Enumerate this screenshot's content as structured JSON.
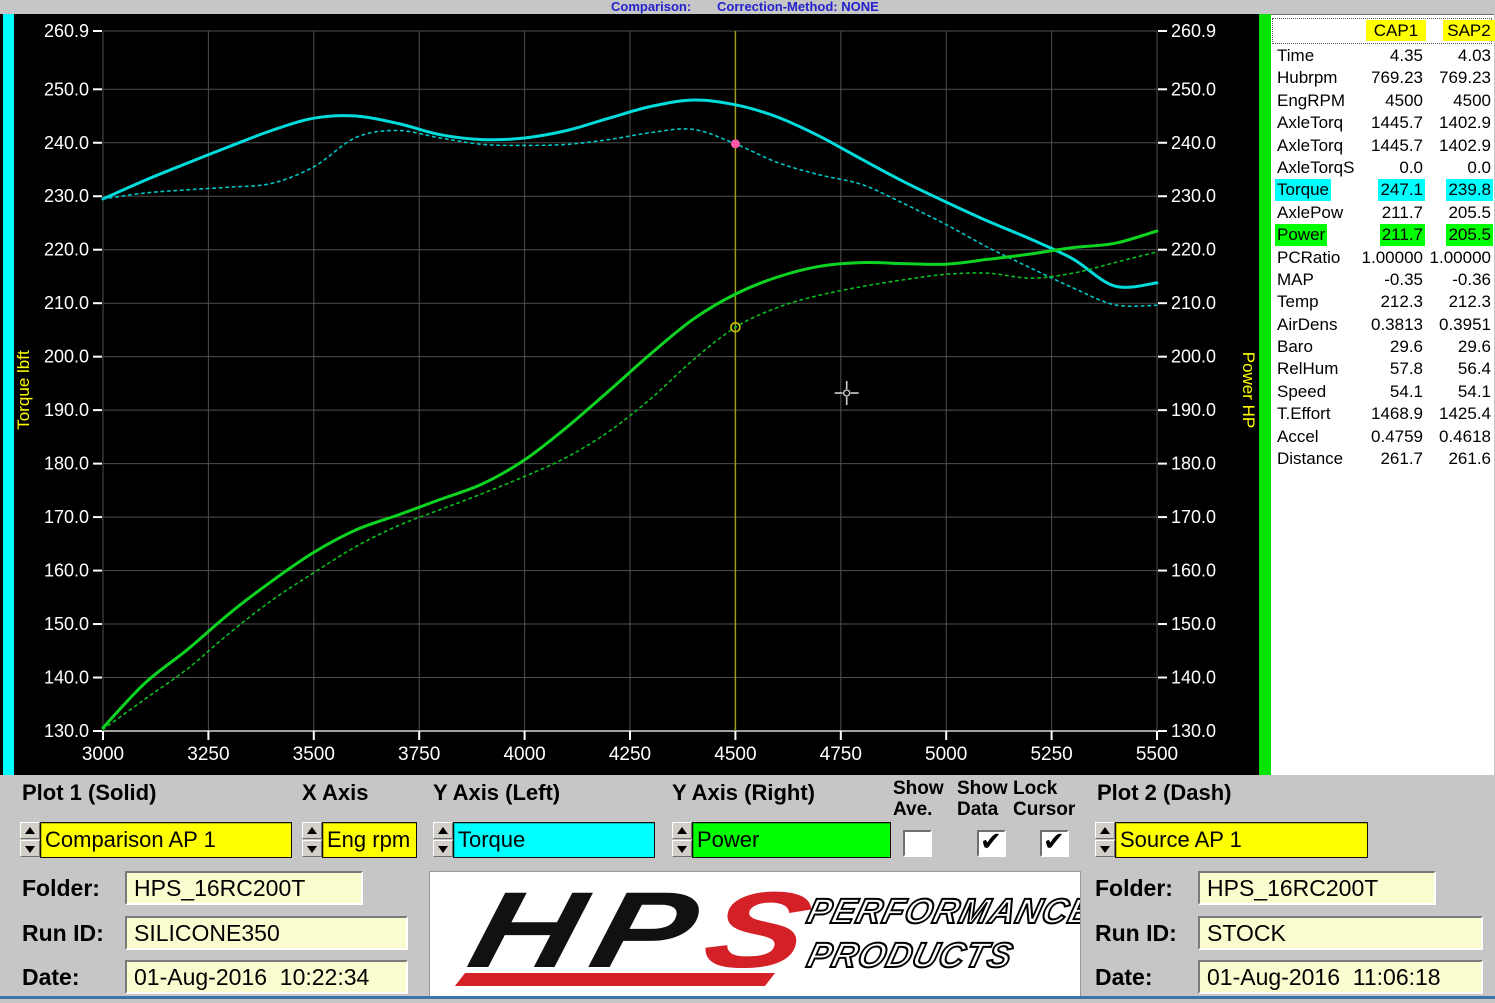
{
  "header": {
    "comparison_label": "Comparison:",
    "correction_method_label": "Correction-Method: NONE"
  },
  "chart_data": {
    "type": "line",
    "x": [
      3000,
      3100,
      3200,
      3300,
      3400,
      3500,
      3600,
      3700,
      3800,
      3900,
      4000,
      4100,
      4200,
      4300,
      4400,
      4500,
      4600,
      4700,
      4800,
      4900,
      5000,
      5100,
      5200,
      5300,
      5400,
      5500
    ],
    "series": [
      {
        "name": "Torque CAP1 SILICONE350 (solid)",
        "style": "solid",
        "color": "#00dcdc",
        "width": 3,
        "values": [
          229.5,
          233.0,
          236.2,
          239.3,
          242.3,
          244.6,
          245.0,
          243.6,
          241.5,
          240.6,
          240.9,
          242.3,
          244.6,
          246.8,
          248.0,
          247.1,
          244.8,
          241.2,
          236.9,
          232.7,
          228.9,
          225.3,
          222.0,
          218.3,
          213.2,
          213.8
        ]
      },
      {
        "name": "Torque SAP2 STOCK (dash)",
        "style": "dash",
        "color": "#00c6c6",
        "width": 1.6,
        "values": [
          229.5,
          230.6,
          231.2,
          231.7,
          232.4,
          235.5,
          241.0,
          242.3,
          240.9,
          239.7,
          239.5,
          239.7,
          240.6,
          241.9,
          242.5,
          239.8,
          236.3,
          234.0,
          232.2,
          228.6,
          224.7,
          220.4,
          216.6,
          212.9,
          209.7,
          209.6
        ]
      },
      {
        "name": "Power CAP1 SILICONE350 (solid)",
        "style": "solid",
        "color": "#0cd421",
        "width": 3,
        "values": [
          130.6,
          139.0,
          145.2,
          152.0,
          158.0,
          163.4,
          167.6,
          170.4,
          173.3,
          176.2,
          180.7,
          186.8,
          193.6,
          200.6,
          207.0,
          211.7,
          214.9,
          216.9,
          217.6,
          217.4,
          217.3,
          218.2,
          219.2,
          220.4,
          221.2,
          223.5
        ]
      },
      {
        "name": "Power SAP2 STOCK (dash)",
        "style": "dash",
        "color": "#0bbd1e",
        "width": 1.6,
        "values": [
          130.3,
          136.0,
          141.6,
          148.3,
          154.4,
          159.6,
          164.5,
          168.4,
          171.4,
          174.4,
          177.6,
          181.2,
          186.0,
          192.2,
          199.4,
          205.5,
          209.2,
          211.5,
          213.1,
          214.4,
          215.4,
          215.6,
          214.7,
          215.6,
          217.6,
          219.6
        ]
      }
    ],
    "axes": {
      "x": {
        "min": 3000,
        "max": 5500,
        "ticks": [
          "3000",
          "3250",
          "3500",
          "3750",
          "4000",
          "4250",
          "4500",
          "4750",
          "5000",
          "5250",
          "5500"
        ]
      },
      "y_left": {
        "label": "Torque lbft",
        "min": 130,
        "max": 260.9,
        "ticks": [
          "260.9",
          "250.0",
          "240.0",
          "230.0",
          "220.0",
          "210.0",
          "200.0",
          "190.0",
          "180.0",
          "170.0",
          "160.0",
          "150.0",
          "140.0",
          "130.0"
        ]
      },
      "y_right": {
        "label": "Power HP",
        "min": 130,
        "max": 260.9,
        "ticks": [
          "260.9",
          "250.0",
          "240.0",
          "230.0",
          "220.0",
          "210.0",
          "200.0",
          "190.0",
          "180.0",
          "170.0",
          "160.0",
          "150.0",
          "140.0",
          "130.0"
        ]
      }
    },
    "grid": true,
    "legend_position": "none",
    "cursor": {
      "x": 4500,
      "color": "#9c9c20"
    },
    "markers": [
      {
        "x": 4500,
        "y": 239.8,
        "shape": "dot",
        "color": "#ff58a8"
      },
      {
        "x": 4500,
        "y": 205.5,
        "shape": "ring",
        "color": "#cccc00"
      }
    ],
    "crosshair": {
      "x": 4764,
      "y": 193.2
    },
    "colors": {
      "background": "#000000",
      "gridline": "#4f4f4f",
      "tick_text": "#ffffff",
      "axis_title": "#ffff00"
    }
  },
  "data_panel": {
    "col1": "CAP1",
    "col2": "SAP2",
    "rows": [
      {
        "label": "Time",
        "v1": "4.35",
        "v2": "4.03",
        "hl": ""
      },
      {
        "label": "Hubrpm",
        "v1": "769.23",
        "v2": "769.23",
        "hl": ""
      },
      {
        "label": "EngRPM",
        "v1": "4500",
        "v2": "4500",
        "hl": ""
      },
      {
        "label": "AxleTorq",
        "v1": "1445.7",
        "v2": "1402.9",
        "hl": ""
      },
      {
        "label": "AxleTorq",
        "v1": "1445.7",
        "v2": "1402.9",
        "hl": ""
      },
      {
        "label": "AxleTorqS",
        "v1": "0.0",
        "v2": "0.0",
        "hl": ""
      },
      {
        "label": "Torque",
        "v1": "247.1",
        "v2": "239.8",
        "hl": "cyan"
      },
      {
        "label": "AxlePow",
        "v1": "211.7",
        "v2": "205.5",
        "hl": ""
      },
      {
        "label": "Power",
        "v1": "211.7",
        "v2": "205.5",
        "hl": "green"
      },
      {
        "label": "PCRatio",
        "v1": "1.00000",
        "v2": "1.00000",
        "hl": ""
      },
      {
        "label": "MAP",
        "v1": "-0.35",
        "v2": "-0.36",
        "hl": ""
      },
      {
        "label": "Temp",
        "v1": "212.3",
        "v2": "212.3",
        "hl": ""
      },
      {
        "label": "AirDens",
        "v1": "0.3813",
        "v2": "0.3951",
        "hl": ""
      },
      {
        "label": "Baro",
        "v1": "29.6",
        "v2": "29.6",
        "hl": ""
      },
      {
        "label": "RelHum",
        "v1": "57.8",
        "v2": "56.4",
        "hl": ""
      },
      {
        "label": "Speed",
        "v1": "54.1",
        "v2": "54.1",
        "hl": ""
      },
      {
        "label": "T.Effort",
        "v1": "1468.9",
        "v2": "1425.4",
        "hl": ""
      },
      {
        "label": "Accel",
        "v1": "0.4759",
        "v2": "0.4618",
        "hl": ""
      },
      {
        "label": "Distance",
        "v1": "261.7",
        "v2": "261.6",
        "hl": ""
      }
    ]
  },
  "controls": {
    "plot1_label": "Plot 1 (Solid)",
    "plot1_value": "Comparison AP 1",
    "xaxis_label": "X Axis",
    "xaxis_value": "Eng rpm",
    "yleft_label": "Y Axis (Left)",
    "yleft_value": "Torque",
    "yright_label": "Y Axis (Right)",
    "yright_value": "Power",
    "show_ave_line1": "Show",
    "show_ave_line2": "Ave.",
    "show_ave_checked": false,
    "show_data_line1": "Show",
    "show_data_line2": "Data",
    "show_data_checked": true,
    "lock_cursor_line1": "Lock",
    "lock_cursor_line2": "Cursor",
    "lock_cursor_checked": true,
    "plot2_label": "Plot 2 (Dash)",
    "plot2_value": "Source AP 1",
    "checkmark": "✔"
  },
  "footer": {
    "left": {
      "folder_label": "Folder:",
      "folder_value": "HPS_16RC200T",
      "runid_label": "Run ID:",
      "runid_value": "SILICONE350",
      "date_label": "Date:",
      "date_value": "01-Aug-2016  10:22:34"
    },
    "right": {
      "folder_label": "Folder:",
      "folder_value": "HPS_16RC200T",
      "runid_label": "Run ID:",
      "runid_value": "STOCK",
      "date_label": "Date:",
      "date_value": "01-Aug-2016  11:06:18"
    },
    "logo": {
      "hp": "HP",
      "s": "S",
      "line1": "PERFORMANCE",
      "line2": "PRODUCTS",
      "accent": "#d42027"
    }
  }
}
